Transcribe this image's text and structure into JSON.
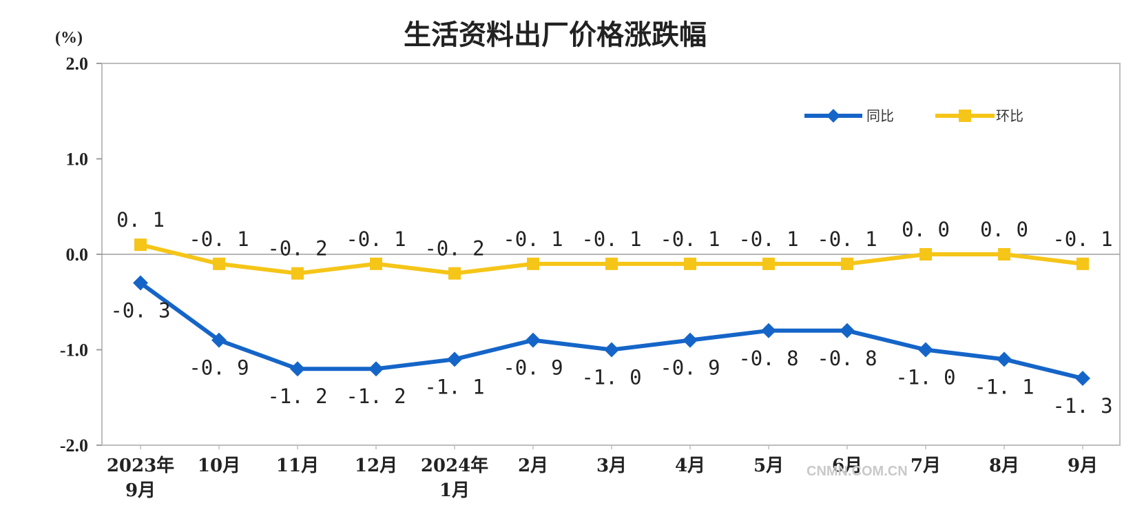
{
  "chart_data": {
    "type": "line",
    "title": "生活资料出厂价格涨跌幅",
    "unit_label": "(%)",
    "ylim": [
      -2.0,
      2.0
    ],
    "yticks": [
      "2.0",
      "1.0",
      "0.0",
      "-1.0",
      "-2.0"
    ],
    "y_tick_values": [
      2.0,
      1.0,
      0.0,
      -1.0,
      -2.0
    ],
    "categories": [
      [
        "2023年",
        "9月"
      ],
      [
        "10月"
      ],
      [
        "11月"
      ],
      [
        "12月"
      ],
      [
        "2024年",
        "1月"
      ],
      [
        "2月"
      ],
      [
        "3月"
      ],
      [
        "4月"
      ],
      [
        "5月"
      ],
      [
        "6月"
      ],
      [
        "7月"
      ],
      [
        "8月"
      ],
      [
        "9月"
      ]
    ],
    "series": [
      {
        "name": "同比",
        "color": "#1565c8",
        "marker": "diamond",
        "values": [
          -0.3,
          -0.9,
          -1.2,
          -1.2,
          -1.1,
          -0.9,
          -1.0,
          -0.9,
          -0.8,
          -0.8,
          -1.0,
          -1.1,
          -1.3
        ],
        "labels": [
          "-0. 3",
          "-0. 9",
          "-1. 2",
          "-1. 2",
          "-1. 1",
          "-0. 9",
          "-1. 0",
          "-0. 9",
          "-0. 8",
          "-0. 8",
          "-1. 0",
          "-1. 1",
          "-1. 3"
        ],
        "label_position": "below"
      },
      {
        "name": "环比",
        "color": "#f5c518",
        "marker": "square",
        "values": [
          0.1,
          -0.1,
          -0.2,
          -0.1,
          -0.2,
          -0.1,
          -0.1,
          -0.1,
          -0.1,
          -0.1,
          0.0,
          0.0,
          -0.1
        ],
        "labels": [
          "0. 1",
          "-0. 1",
          "-0. 2",
          "-0. 1",
          "-0. 2",
          "-0. 1",
          "-0. 1",
          "-0. 1",
          "-0. 1",
          "-0. 1",
          "0. 0",
          "0. 0",
          "-0. 1"
        ],
        "label_position": "above"
      }
    ],
    "grid": false,
    "zero_line": true,
    "legend_position": "top-right",
    "watermark": "CNMN.COM.CN"
  }
}
